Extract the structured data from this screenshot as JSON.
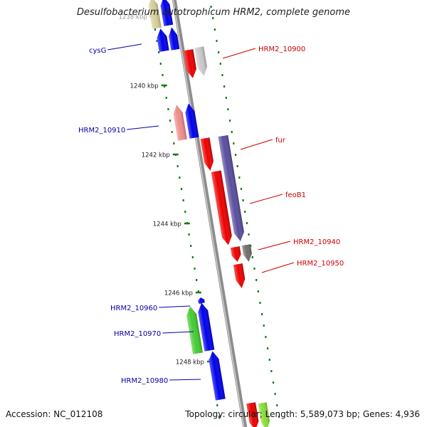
{
  "title": "Desulfobacterium autotrophicum HRM2, complete genome",
  "accession_text": "Accession: NC_012108",
  "summary_text": "Topology: circular; Length: 5,589,073 bp; Genes: 4,936",
  "colors": {
    "backbone": "#8c8c8c",
    "forward_label": "#cc0000",
    "reverse_label": "#0000aa",
    "tick": "#1a7a1a"
  },
  "scale_ticks": [
    {
      "label": "1238 kbp",
      "kbp": 1238
    },
    {
      "label": "1240 kbp",
      "kbp": 1240
    },
    {
      "label": "1242 kbp",
      "kbp": 1242
    },
    {
      "label": "1244 kbp",
      "kbp": 1244
    },
    {
      "label": "1246 kbp",
      "kbp": 1246
    },
    {
      "label": "1248 kbp",
      "kbp": 1248
    }
  ],
  "genes": [
    {
      "label": "",
      "strand": "-",
      "color": "#d6cf9a"
    },
    {
      "label": "",
      "strand": "-",
      "color": "#0000ee"
    },
    {
      "label": "cysG",
      "strand": "-",
      "color": "#0000ee"
    },
    {
      "label": "",
      "strand": "-",
      "color": "#0000ee"
    },
    {
      "label": "HRM2_10900",
      "strand": "+",
      "color": "#ee0000"
    },
    {
      "label": "",
      "strand": "+",
      "color": "#c8c8c8"
    },
    {
      "label": "",
      "strand": "-",
      "color": "#f08c8c"
    },
    {
      "label": "HRM2_10910",
      "strand": "-",
      "color": "#0000ee"
    },
    {
      "label": "fur",
      "strand": "+",
      "color": "#ee0000"
    },
    {
      "label": "feoB1",
      "strand": "+",
      "color": "#ee0000"
    },
    {
      "label": "",
      "strand": "+",
      "color": "#5a4e9e"
    },
    {
      "label": "HRM2_10940",
      "strand": "+",
      "color": "#ee0000"
    },
    {
      "label": "",
      "strand": "+",
      "color": "#6e6e6e"
    },
    {
      "label": "HRM2_10950",
      "strand": "+",
      "color": "#ee0000"
    },
    {
      "label": "",
      "strand": "-",
      "color": "#0000ee"
    },
    {
      "label": "HRM2_10960",
      "strand": "-",
      "color": "#44cc33"
    },
    {
      "label": "HRM2_10970",
      "strand": "-",
      "color": "#0000ee"
    },
    {
      "label": "HRM2_10980",
      "strand": "-",
      "color": "#0000ee"
    },
    {
      "label": "",
      "strand": "+",
      "color": "#ee0000"
    },
    {
      "label": "",
      "strand": "+",
      "color": "#88dd33"
    }
  ]
}
